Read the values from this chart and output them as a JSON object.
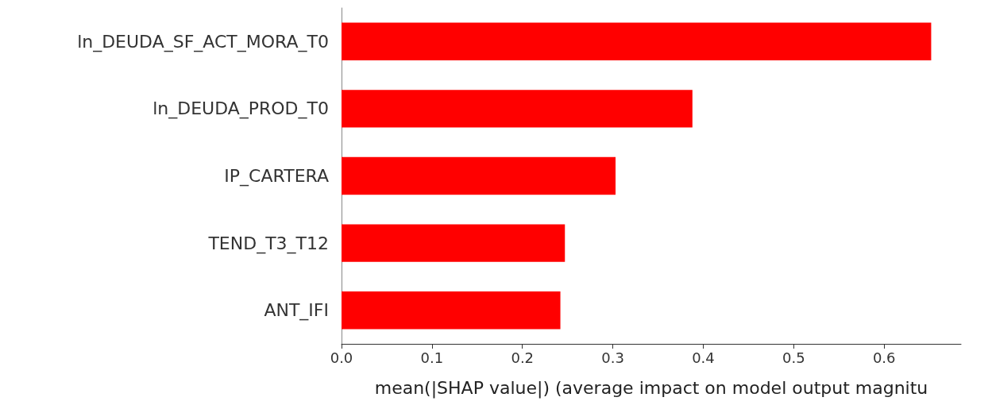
{
  "chart_data": {
    "type": "bar",
    "orientation": "horizontal",
    "xlabel": "mean(|SHAP value|) (average impact on model output magnitu",
    "categories": [
      "ln_DEUDA_SF_ACT_MORA_T0",
      "ln_DEUDA_PROD_T0",
      "IP_CARTERA",
      "TEND_T3_T12",
      "ANT_IFI"
    ],
    "values": [
      0.652,
      0.388,
      0.303,
      0.247,
      0.242
    ],
    "color": "#ff0000",
    "xlim": [
      0,
      0.685
    ],
    "xticks": [
      {
        "value": 0,
        "label": "0.0"
      },
      {
        "value": 0.1,
        "label": "0.1"
      },
      {
        "value": 0.2,
        "label": "0.2"
      },
      {
        "value": 0.3,
        "label": "0.3"
      },
      {
        "value": 0.4,
        "label": "0.4"
      },
      {
        "value": 0.5,
        "label": "0.5"
      },
      {
        "value": 0.6,
        "label": "0.6"
      }
    ],
    "grid": false
  }
}
